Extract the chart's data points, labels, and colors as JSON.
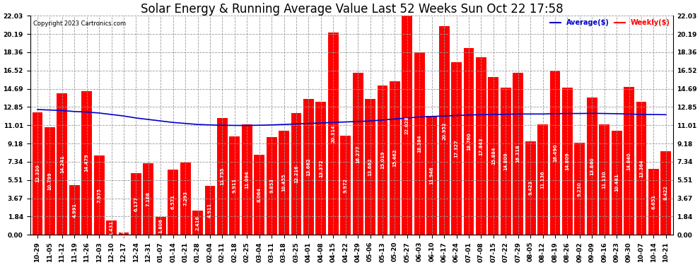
{
  "title": "Solar Energy & Running Average Value Last 52 Weeks Sun Oct 22 17:58",
  "copyright": "Copyright 2023 Cartronics.com",
  "legend_avg": "Average($)",
  "legend_weekly": "Weekly($)",
  "categories": [
    "10-29",
    "11-05",
    "11-12",
    "11-19",
    "11-26",
    "12-03",
    "12-10",
    "12-17",
    "12-24",
    "12-31",
    "01-07",
    "01-14",
    "01-21",
    "01-28",
    "02-04",
    "02-11",
    "02-18",
    "02-25",
    "03-04",
    "03-11",
    "03-18",
    "03-25",
    "04-01",
    "04-08",
    "04-15",
    "04-22",
    "04-29",
    "05-06",
    "05-13",
    "05-20",
    "05-27",
    "06-03",
    "06-10",
    "06-17",
    "06-24",
    "07-01",
    "07-08",
    "07-15",
    "07-22",
    "07-29",
    "08-05",
    "08-12",
    "08-19",
    "08-26",
    "09-02",
    "09-09",
    "09-16",
    "09-23",
    "09-30",
    "10-07",
    "10-14",
    "10-21"
  ],
  "weekly_values": [
    12.33,
    10.799,
    14.241,
    4.991,
    14.479,
    7.975,
    1.431,
    0.243,
    6.177,
    7.168,
    1.806,
    6.571,
    7.293,
    2.416,
    4.911,
    11.755,
    9.911,
    11.094,
    8.064,
    9.853,
    10.455,
    12.216,
    13.662,
    13.372,
    20.314,
    9.972,
    16.277,
    13.662,
    15.019,
    15.462,
    22.028,
    18.384,
    11.946,
    20.952,
    17.327,
    18.76,
    17.843,
    15.884,
    14.809,
    16.318,
    9.423,
    11.136,
    16.49,
    14.809,
    9.23,
    13.84,
    11.13,
    10.481,
    14.84,
    13.364,
    6.651,
    8.422
  ],
  "avg_values": [
    12.6,
    12.55,
    12.5,
    12.4,
    12.35,
    12.25,
    12.1,
    11.95,
    11.75,
    11.6,
    11.45,
    11.3,
    11.2,
    11.1,
    11.05,
    11.02,
    11.0,
    11.0,
    11.02,
    11.05,
    11.1,
    11.15,
    11.2,
    11.25,
    11.3,
    11.35,
    11.4,
    11.45,
    11.55,
    11.65,
    11.75,
    11.85,
    11.9,
    11.95,
    12.0,
    12.05,
    12.08,
    12.1,
    12.12,
    12.15,
    12.15,
    12.15,
    12.18,
    12.2,
    12.2,
    12.22,
    12.2,
    12.18,
    12.15,
    12.1,
    12.1,
    12.08
  ],
  "bar_color": "#ff0000",
  "avg_line_color": "#0000cc",
  "weekly_line_color": "#ff0000",
  "background_color": "#ffffff",
  "grid_color": "#999999",
  "yticks": [
    0.0,
    1.84,
    3.67,
    5.51,
    7.34,
    9.18,
    11.01,
    12.85,
    14.69,
    16.52,
    18.36,
    20.19,
    22.03
  ],
  "ymax": 22.03,
  "title_fontsize": 12,
  "tick_fontsize": 6.5,
  "bar_label_fontsize": 4.8
}
